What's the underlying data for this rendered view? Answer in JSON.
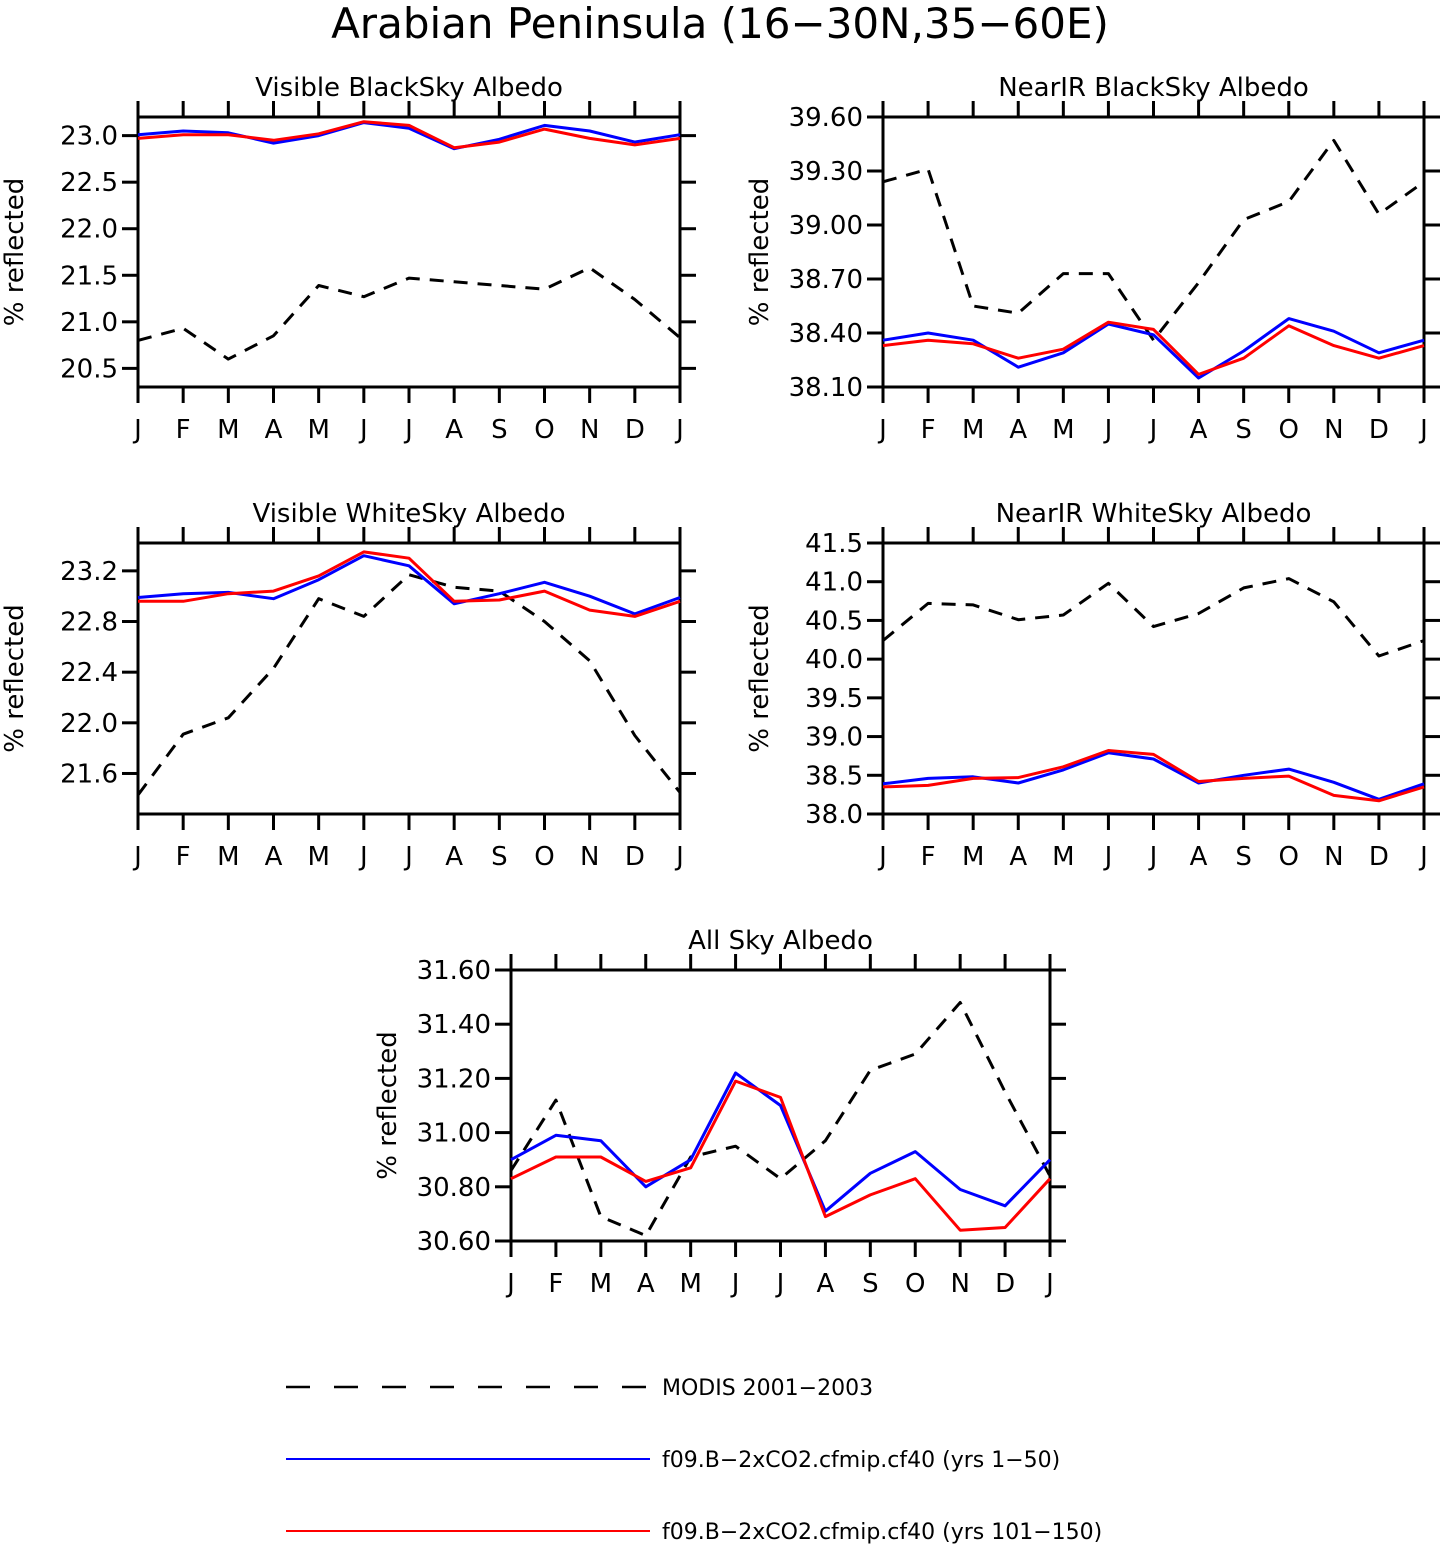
{
  "figure": {
    "title": "Arabian Peninsula (16−30N,35−60E)"
  },
  "legend": [
    {
      "label": "MODIS 2001−2003",
      "color": "#000000",
      "style": "dashed"
    },
    {
      "label": "f09.B−2xCO2.cfmip.cf40 (yrs 1−50)",
      "color": "#0000ff",
      "style": "solid"
    },
    {
      "label": "f09.B−2xCO2.cfmip.cf40 (yrs 101−150)",
      "color": "#ff0000",
      "style": "solid"
    }
  ],
  "chart_data": [
    {
      "type": "line",
      "title": "Visible BlackSky Albedo",
      "ylabel": "% reflected",
      "categories": [
        "J",
        "F",
        "M",
        "A",
        "M",
        "J",
        "J",
        "A",
        "S",
        "O",
        "N",
        "D",
        "J"
      ],
      "ylim": [
        20.3,
        23.2
      ],
      "yticks": [
        "20.5",
        "21.0",
        "21.5",
        "22.0",
        "22.5",
        "23.0"
      ],
      "series": [
        {
          "name": "MODIS 2001−2003",
          "values": [
            20.8,
            20.93,
            20.6,
            20.85,
            21.39,
            21.27,
            21.47,
            21.43,
            21.39,
            21.35,
            21.58,
            21.24,
            20.83
          ]
        },
        {
          "name": "f09.B−2xCO2.cfmip.cf40 (yrs 1−50)",
          "values": [
            23.01,
            23.05,
            23.03,
            22.92,
            23.0,
            23.14,
            23.08,
            22.86,
            22.96,
            23.11,
            23.05,
            22.93,
            23.01
          ]
        },
        {
          "name": "f09.B−2xCO2.cfmip.cf40 (yrs 101−150)",
          "values": [
            22.97,
            23.01,
            23.01,
            22.95,
            23.02,
            23.15,
            23.11,
            22.87,
            22.93,
            23.07,
            22.97,
            22.9,
            22.97
          ]
        }
      ]
    },
    {
      "type": "line",
      "title": "NearIR BlackSky Albedo",
      "ylabel": "% reflected",
      "categories": [
        "J",
        "F",
        "M",
        "A",
        "M",
        "J",
        "J",
        "A",
        "S",
        "O",
        "N",
        "D",
        "J"
      ],
      "ylim": [
        38.1,
        39.6
      ],
      "yticks": [
        "38.10",
        "38.40",
        "38.70",
        "39.00",
        "39.30",
        "39.60"
      ],
      "series": [
        {
          "name": "MODIS 2001−2003",
          "values": [
            39.24,
            39.31,
            38.55,
            38.51,
            38.73,
            38.73,
            38.36,
            38.68,
            39.03,
            39.13,
            39.47,
            39.06,
            39.24
          ]
        },
        {
          "name": "f09.B−2xCO2.cfmip.cf40 (yrs 1−50)",
          "values": [
            38.36,
            38.4,
            38.36,
            38.21,
            38.29,
            38.45,
            38.39,
            38.15,
            38.3,
            38.48,
            38.41,
            38.29,
            38.36
          ]
        },
        {
          "name": "f09.B−2xCO2.cfmip.cf40 (yrs 101−150)",
          "values": [
            38.33,
            38.36,
            38.34,
            38.26,
            38.31,
            38.46,
            38.42,
            38.17,
            38.26,
            38.44,
            38.33,
            38.26,
            38.33
          ]
        }
      ]
    },
    {
      "type": "line",
      "title": "Visible WhiteSky Albedo",
      "ylabel": "% reflected",
      "categories": [
        "J",
        "F",
        "M",
        "A",
        "M",
        "J",
        "J",
        "A",
        "S",
        "O",
        "N",
        "D",
        "J"
      ],
      "ylim": [
        21.28,
        23.42
      ],
      "yticks": [
        "21.6",
        "22.0",
        "22.4",
        "22.8",
        "23.2"
      ],
      "series": [
        {
          "name": "MODIS 2001−2003",
          "values": [
            21.43,
            21.91,
            22.04,
            22.43,
            22.98,
            22.84,
            23.17,
            23.07,
            23.04,
            22.8,
            22.49,
            21.9,
            21.45
          ]
        },
        {
          "name": "f09.B−2xCO2.cfmip.cf40 (yrs 1−50)",
          "values": [
            22.99,
            23.02,
            23.03,
            22.98,
            23.13,
            23.32,
            23.24,
            22.94,
            23.02,
            23.11,
            23.0,
            22.86,
            22.99
          ]
        },
        {
          "name": "f09.B−2xCO2.cfmip.cf40 (yrs 101−150)",
          "values": [
            22.96,
            22.96,
            23.02,
            23.04,
            23.16,
            23.35,
            23.3,
            22.96,
            22.97,
            23.04,
            22.89,
            22.84,
            22.96
          ]
        }
      ]
    },
    {
      "type": "line",
      "title": "NearIR WhiteSky Albedo",
      "ylabel": "% reflected",
      "categories": [
        "J",
        "F",
        "M",
        "A",
        "M",
        "J",
        "J",
        "A",
        "S",
        "O",
        "N",
        "D",
        "J"
      ],
      "ylim": [
        38.0,
        41.5
      ],
      "yticks": [
        "38.0",
        "38.5",
        "39.0",
        "39.5",
        "40.0",
        "40.5",
        "41.0",
        "41.5"
      ],
      "series": [
        {
          "name": "MODIS 2001−2003",
          "values": [
            40.24,
            40.72,
            40.7,
            40.51,
            40.57,
            40.98,
            40.42,
            40.59,
            40.92,
            41.04,
            40.74,
            40.04,
            40.24
          ]
        },
        {
          "name": "f09.B−2xCO2.cfmip.cf40 (yrs 1−50)",
          "values": [
            38.39,
            38.46,
            38.48,
            38.4,
            38.57,
            38.79,
            38.71,
            38.4,
            38.5,
            38.58,
            38.41,
            38.19,
            38.39
          ]
        },
        {
          "name": "f09.B−2xCO2.cfmip.cf40 (yrs 101−150)",
          "values": [
            38.35,
            38.37,
            38.46,
            38.47,
            38.61,
            38.82,
            38.77,
            38.42,
            38.46,
            38.49,
            38.24,
            38.17,
            38.35
          ]
        }
      ]
    },
    {
      "type": "line",
      "title": "All Sky Albedo",
      "ylabel": "% reflected",
      "categories": [
        "J",
        "F",
        "M",
        "A",
        "M",
        "J",
        "J",
        "A",
        "S",
        "O",
        "N",
        "D",
        "J"
      ],
      "ylim": [
        30.6,
        31.6
      ],
      "yticks": [
        "30.60",
        "30.80",
        "31.00",
        "31.20",
        "31.40",
        "31.60"
      ],
      "series": [
        {
          "name": "MODIS 2001−2003",
          "values": [
            30.86,
            31.12,
            30.69,
            30.62,
            30.91,
            30.95,
            30.83,
            30.97,
            31.23,
            31.29,
            31.48,
            31.15,
            30.84
          ]
        },
        {
          "name": "f09.B−2xCO2.cfmip.cf40 (yrs 1−50)",
          "values": [
            30.9,
            30.99,
            30.97,
            30.8,
            30.9,
            31.22,
            31.1,
            30.71,
            30.85,
            30.93,
            30.79,
            30.73,
            30.9
          ]
        },
        {
          "name": "f09.B−2xCO2.cfmip.cf40 (yrs 101−150)",
          "values": [
            30.83,
            30.91,
            30.91,
            30.82,
            30.87,
            31.19,
            31.13,
            30.69,
            30.77,
            30.83,
            30.64,
            30.65,
            30.83
          ]
        }
      ]
    }
  ]
}
